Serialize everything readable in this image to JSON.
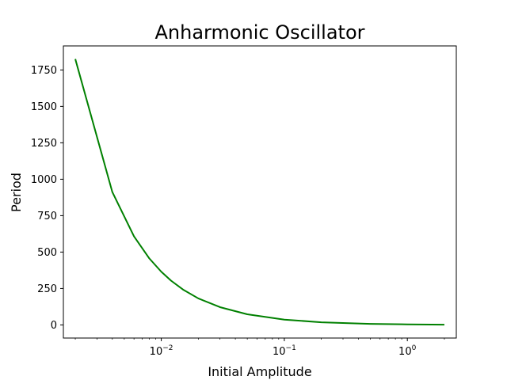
{
  "chart_data": {
    "type": "line",
    "title": "Anharmonic Oscillator",
    "xlabel": "Initial Amplitude",
    "ylabel": "Period",
    "xscale": "log",
    "xlim": [
      0.0016,
      2.5
    ],
    "ylim": [
      -90,
      1915
    ],
    "grid": false,
    "series": [
      {
        "color": "#008000",
        "x": [
          0.002,
          0.004,
          0.006,
          0.008,
          0.01,
          0.012,
          0.015,
          0.02,
          0.03,
          0.05,
          0.1,
          0.2,
          0.5,
          1.0,
          2.0
        ],
        "y": [
          1825,
          912,
          608,
          456,
          365,
          304,
          243,
          182,
          122,
          73,
          36.5,
          18.2,
          7.3,
          3.7,
          1.8
        ]
      }
    ],
    "xticks": [
      {
        "value": 0.01,
        "base": "10",
        "exp": "−2"
      },
      {
        "value": 0.1,
        "base": "10",
        "exp": "−1"
      },
      {
        "value": 1,
        "base": "10",
        "exp": "0"
      }
    ],
    "yticks": [
      {
        "value": 0,
        "label": "0"
      },
      {
        "value": 250,
        "label": "250"
      },
      {
        "value": 500,
        "label": "500"
      },
      {
        "value": 750,
        "label": "750"
      },
      {
        "value": 1000,
        "label": "1000"
      },
      {
        "value": 1250,
        "label": "1250"
      },
      {
        "value": 1500,
        "label": "1500"
      },
      {
        "value": 1750,
        "label": "1750"
      }
    ]
  }
}
